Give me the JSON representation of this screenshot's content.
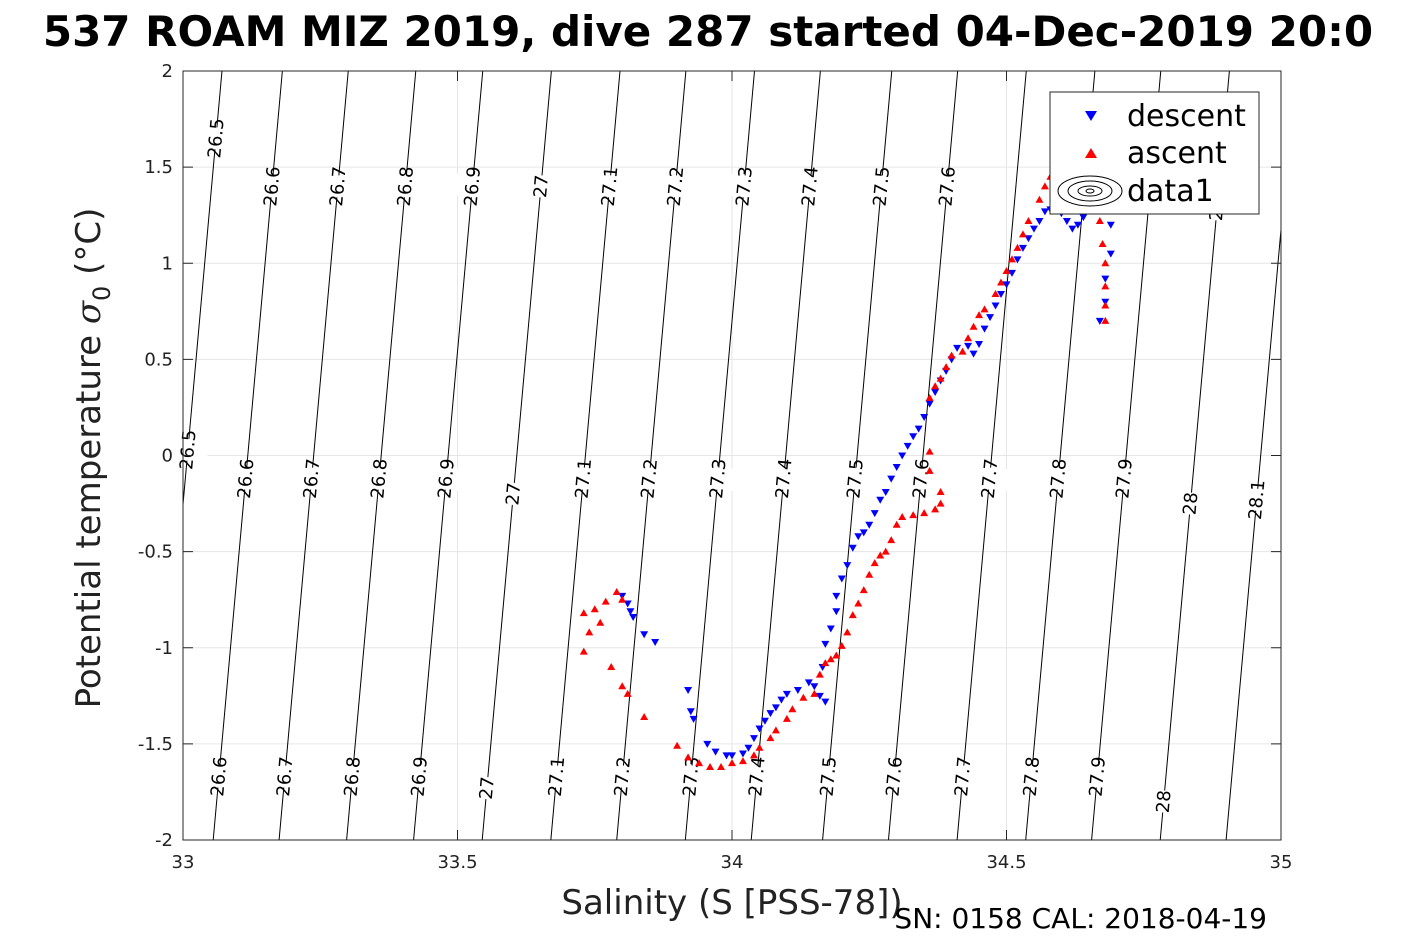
{
  "chart_data": {
    "type": "scatter",
    "title": "537 ROAM MIZ 2019, dive 287 started 04-Dec-2019 20:0",
    "xlabel": "Salinity (S [PSS-78])",
    "ylabel_main": "Potential temperature ",
    "ylabel_sym": "σ",
    "ylabel_sub": "0",
    "ylabel_unit": " (°C)",
    "footnote": "SN: 0158  CAL: 2018-04-19",
    "xlim": [
      33,
      35
    ],
    "ylim": [
      -2,
      2
    ],
    "x_ticks": [
      33,
      33.5,
      34,
      34.5,
      35
    ],
    "x_tick_labels": [
      "33",
      "33.5",
      "34",
      "34.5",
      "35"
    ],
    "y_ticks": [
      -2,
      -1.5,
      -1,
      -0.5,
      0,
      0.5,
      1,
      1.5,
      2
    ],
    "y_tick_labels": [
      "-2",
      "-1.5",
      "-1",
      "-0.5",
      "0",
      "0.5",
      "1",
      "1.5",
      "2"
    ],
    "grid": true,
    "legend": {
      "placement": "top-right",
      "entries": [
        {
          "label": "descent",
          "marker": "triangle-down",
          "color": "#0000ff"
        },
        {
          "label": "ascent",
          "marker": "triangle-up",
          "color": "#ff0000"
        },
        {
          "label": "data1",
          "marker": "contour",
          "color": "#000000"
        }
      ]
    },
    "isopycnals": [
      {
        "sigma": 26.5,
        "x_at_m2": 32.945,
        "labels": [
          {
            "text": "26.5",
            "y": 1.65
          },
          {
            "text": "26.5",
            "y": 0.03
          }
        ]
      },
      {
        "sigma": 26.6,
        "x_at_m2": 33.055,
        "labels": [
          {
            "text": "26.6",
            "y": 1.4
          },
          {
            "text": "26.6",
            "y": -0.12
          },
          {
            "text": "26.6",
            "y": -1.67
          }
        ]
      },
      {
        "sigma": 26.7,
        "x_at_m2": 33.175,
        "labels": [
          {
            "text": "26.7",
            "y": 1.4
          },
          {
            "text": "26.7",
            "y": -0.12
          },
          {
            "text": "26.7",
            "y": -1.67
          }
        ]
      },
      {
        "sigma": 26.8,
        "x_at_m2": 33.298,
        "labels": [
          {
            "text": "26.8",
            "y": 1.4
          },
          {
            "text": "26.8",
            "y": -0.12
          },
          {
            "text": "26.8",
            "y": -1.67
          }
        ]
      },
      {
        "sigma": 26.9,
        "x_at_m2": 33.42,
        "labels": [
          {
            "text": "26.9",
            "y": 1.4
          },
          {
            "text": "26.9",
            "y": -0.12
          },
          {
            "text": "26.9",
            "y": -1.67
          }
        ]
      },
      {
        "sigma": 27,
        "x_at_m2": 33.545,
        "labels": [
          {
            "text": "27",
            "y": 1.4
          },
          {
            "text": "27",
            "y": -0.2
          },
          {
            "text": "27",
            "y": -1.73
          }
        ]
      },
      {
        "sigma": 27.1,
        "x_at_m2": 33.67,
        "labels": [
          {
            "text": "27.1",
            "y": 1.4
          },
          {
            "text": "27.1",
            "y": -0.12
          },
          {
            "text": "27.1",
            "y": -1.67
          }
        ]
      },
      {
        "sigma": 27.2,
        "x_at_m2": 33.79,
        "labels": [
          {
            "text": "27.2",
            "y": 1.4
          },
          {
            "text": "27.2",
            "y": -0.12
          },
          {
            "text": "27.2",
            "y": -1.67
          }
        ]
      },
      {
        "sigma": 27.3,
        "x_at_m2": 33.915,
        "labels": [
          {
            "text": "27.3",
            "y": 1.4
          },
          {
            "text": "27.3",
            "y": -0.12
          },
          {
            "text": "27.3",
            "y": -1.67
          }
        ]
      },
      {
        "sigma": 27.4,
        "x_at_m2": 34.035,
        "labels": [
          {
            "text": "27.4",
            "y": 1.4
          },
          {
            "text": "27.4",
            "y": -0.12
          },
          {
            "text": "27.4",
            "y": -1.67
          }
        ]
      },
      {
        "sigma": 27.5,
        "x_at_m2": 34.165,
        "labels": [
          {
            "text": "27.5",
            "y": 1.4
          },
          {
            "text": "27.5",
            "y": -0.12
          },
          {
            "text": "27.5",
            "y": -1.67
          }
        ]
      },
      {
        "sigma": 27.6,
        "x_at_m2": 34.285,
        "labels": [
          {
            "text": "27.6",
            "y": 1.4
          },
          {
            "text": "27.6",
            "y": -0.12
          },
          {
            "text": "27.6",
            "y": -1.67
          }
        ]
      },
      {
        "sigma": 27.7,
        "x_at_m2": 34.41,
        "labels": [
          {
            "text": "27.7",
            "y": -0.12
          },
          {
            "text": "27.7",
            "y": -1.67
          }
        ]
      },
      {
        "sigma": 27.8,
        "x_at_m2": 34.535,
        "labels": [
          {
            "text": "27.8",
            "y": -0.12
          },
          {
            "text": "27.8",
            "y": -1.67
          }
        ]
      },
      {
        "sigma": 27.9,
        "x_at_m2": 34.655,
        "labels": [
          {
            "text": "27.9",
            "y": -0.12
          },
          {
            "text": "27.9",
            "y": -1.67
          }
        ]
      },
      {
        "sigma": 28,
        "x_at_m2": 34.78,
        "labels": [
          {
            "text": "28",
            "y": 1.28
          },
          {
            "text": "28",
            "y": -0.25
          },
          {
            "text": "28",
            "y": -1.8
          }
        ]
      },
      {
        "sigma": 28.1,
        "x_at_m2": 34.9,
        "labels": [
          {
            "text": "28.1",
            "y": -0.23
          }
        ]
      }
    ],
    "series": [
      {
        "name": "descent",
        "marker": "triangle-down",
        "color": "#0000ff",
        "points": [
          [
            33.8,
            -0.73
          ],
          [
            33.81,
            -0.77
          ],
          [
            33.815,
            -0.81
          ],
          [
            33.82,
            -0.84
          ],
          [
            33.84,
            -0.93
          ],
          [
            33.86,
            -0.97
          ],
          [
            33.92,
            -1.22
          ],
          [
            33.925,
            -1.33
          ],
          [
            33.93,
            -1.37
          ],
          [
            33.955,
            -1.5
          ],
          [
            33.97,
            -1.54
          ],
          [
            33.99,
            -1.56
          ],
          [
            34.0,
            -1.56
          ],
          [
            34.02,
            -1.55
          ],
          [
            34.03,
            -1.52
          ],
          [
            34.04,
            -1.47
          ],
          [
            34.05,
            -1.42
          ],
          [
            34.06,
            -1.38
          ],
          [
            34.07,
            -1.34
          ],
          [
            34.08,
            -1.31
          ],
          [
            34.09,
            -1.27
          ],
          [
            34.1,
            -1.24
          ],
          [
            34.12,
            -1.22
          ],
          [
            34.14,
            -1.18
          ],
          [
            34.15,
            -1.2
          ],
          [
            34.16,
            -1.25
          ],
          [
            34.17,
            -1.28
          ],
          [
            34.165,
            -1.1
          ],
          [
            34.17,
            -0.98
          ],
          [
            34.18,
            -0.9
          ],
          [
            34.19,
            -0.81
          ],
          [
            34.19,
            -0.73
          ],
          [
            34.2,
            -0.64
          ],
          [
            34.21,
            -0.57
          ],
          [
            34.22,
            -0.48
          ],
          [
            34.23,
            -0.42
          ],
          [
            34.24,
            -0.4
          ],
          [
            34.25,
            -0.36
          ],
          [
            34.26,
            -0.3
          ],
          [
            34.27,
            -0.23
          ],
          [
            34.28,
            -0.19
          ],
          [
            34.29,
            -0.12
          ],
          [
            34.3,
            -0.06
          ],
          [
            34.31,
            0.0
          ],
          [
            34.32,
            0.05
          ],
          [
            34.33,
            0.1
          ],
          [
            34.34,
            0.14
          ],
          [
            34.35,
            0.2
          ],
          [
            34.36,
            0.27
          ],
          [
            34.37,
            0.33
          ],
          [
            34.38,
            0.39
          ],
          [
            34.39,
            0.44
          ],
          [
            34.4,
            0.5
          ],
          [
            34.41,
            0.56
          ],
          [
            34.43,
            0.57
          ],
          [
            34.44,
            0.53
          ],
          [
            34.45,
            0.58
          ],
          [
            34.46,
            0.66
          ],
          [
            34.47,
            0.72
          ],
          [
            34.48,
            0.78
          ],
          [
            34.49,
            0.84
          ],
          [
            34.5,
            0.89
          ],
          [
            34.51,
            0.95
          ],
          [
            34.52,
            1.02
          ],
          [
            34.53,
            1.08
          ],
          [
            34.54,
            1.13
          ],
          [
            34.55,
            1.18
          ],
          [
            34.56,
            1.22
          ],
          [
            34.57,
            1.27
          ],
          [
            34.58,
            1.28
          ],
          [
            34.6,
            1.26
          ],
          [
            34.61,
            1.22
          ],
          [
            34.62,
            1.18
          ],
          [
            34.63,
            1.2
          ],
          [
            34.64,
            1.24
          ],
          [
            34.66,
            1.28
          ],
          [
            34.68,
            1.3
          ],
          [
            34.69,
            1.2
          ],
          [
            34.69,
            1.05
          ],
          [
            34.68,
            0.92
          ],
          [
            34.68,
            0.8
          ],
          [
            34.67,
            0.7
          ]
        ]
      },
      {
        "name": "ascent",
        "marker": "triangle-up",
        "color": "#ff0000",
        "points": [
          [
            33.73,
            -0.82
          ],
          [
            33.75,
            -0.8
          ],
          [
            33.77,
            -0.76
          ],
          [
            33.79,
            -0.71
          ],
          [
            33.8,
            -0.75
          ],
          [
            33.76,
            -0.87
          ],
          [
            33.74,
            -0.92
          ],
          [
            33.73,
            -1.02
          ],
          [
            33.78,
            -1.1
          ],
          [
            33.8,
            -1.2
          ],
          [
            33.81,
            -1.24
          ],
          [
            33.84,
            -1.36
          ],
          [
            33.9,
            -1.51
          ],
          [
            33.92,
            -1.57
          ],
          [
            33.94,
            -1.6
          ],
          [
            33.96,
            -1.62
          ],
          [
            33.98,
            -1.62
          ],
          [
            34.0,
            -1.6
          ],
          [
            34.02,
            -1.59
          ],
          [
            34.04,
            -1.56
          ],
          [
            34.05,
            -1.52
          ],
          [
            34.07,
            -1.47
          ],
          [
            34.08,
            -1.43
          ],
          [
            34.1,
            -1.37
          ],
          [
            34.11,
            -1.32
          ],
          [
            34.13,
            -1.26
          ],
          [
            34.15,
            -1.24
          ],
          [
            34.16,
            -1.14
          ],
          [
            34.17,
            -1.08
          ],
          [
            34.18,
            -1.06
          ],
          [
            34.19,
            -1.04
          ],
          [
            34.2,
            -0.99
          ],
          [
            34.21,
            -0.92
          ],
          [
            34.22,
            -0.83
          ],
          [
            34.23,
            -0.77
          ],
          [
            34.24,
            -0.7
          ],
          [
            34.25,
            -0.62
          ],
          [
            34.26,
            -0.56
          ],
          [
            34.27,
            -0.52
          ],
          [
            34.28,
            -0.5
          ],
          [
            34.29,
            -0.44
          ],
          [
            34.3,
            -0.36
          ],
          [
            34.31,
            -0.32
          ],
          [
            34.33,
            -0.31
          ],
          [
            34.35,
            -0.3
          ],
          [
            34.37,
            -0.28
          ],
          [
            34.38,
            -0.25
          ],
          [
            34.38,
            -0.19
          ],
          [
            34.36,
            -0.08
          ],
          [
            34.36,
            0.02
          ],
          [
            34.36,
            0.3
          ],
          [
            34.37,
            0.36
          ],
          [
            34.38,
            0.4
          ],
          [
            34.39,
            0.46
          ],
          [
            34.4,
            0.52
          ],
          [
            34.42,
            0.54
          ],
          [
            34.43,
            0.61
          ],
          [
            34.44,
            0.67
          ],
          [
            34.45,
            0.73
          ],
          [
            34.46,
            0.76
          ],
          [
            34.48,
            0.84
          ],
          [
            34.49,
            0.9
          ],
          [
            34.5,
            0.96
          ],
          [
            34.51,
            1.02
          ],
          [
            34.52,
            1.08
          ],
          [
            34.53,
            1.15
          ],
          [
            34.54,
            1.22
          ],
          [
            34.56,
            1.33
          ],
          [
            34.57,
            1.4
          ],
          [
            34.58,
            1.45
          ],
          [
            34.6,
            1.48
          ],
          [
            34.62,
            1.45
          ],
          [
            34.63,
            1.4
          ],
          [
            34.66,
            1.3
          ],
          [
            34.67,
            1.22
          ],
          [
            34.675,
            1.1
          ],
          [
            34.68,
            1.0
          ],
          [
            34.68,
            0.88
          ],
          [
            34.68,
            0.78
          ],
          [
            34.68,
            0.7
          ]
        ]
      }
    ]
  }
}
